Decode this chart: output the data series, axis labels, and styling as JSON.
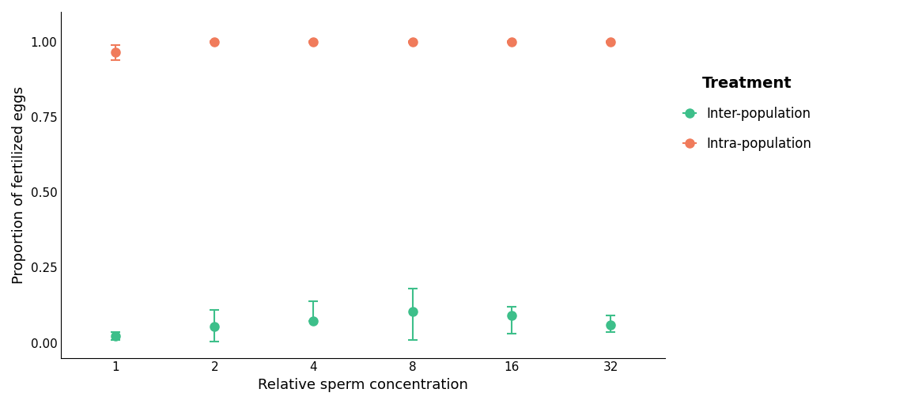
{
  "x_positions": [
    1,
    2,
    4,
    8,
    16,
    32
  ],
  "x_labels": [
    "1",
    "2",
    "4",
    "8",
    "16",
    "32"
  ],
  "inter_mean": [
    0.022,
    0.055,
    0.072,
    0.105,
    0.09,
    0.06
  ],
  "inter_err_low": [
    0.012,
    0.05,
    0.0,
    0.095,
    0.06,
    0.025
  ],
  "inter_err_high": [
    0.013,
    0.055,
    0.065,
    0.075,
    0.03,
    0.03
  ],
  "intra_mean": [
    0.965,
    1.0,
    1.0,
    1.0,
    1.0,
    1.0
  ],
  "intra_err_low": [
    0.025,
    0.003,
    0.003,
    0.003,
    0.003,
    0.003
  ],
  "intra_err_high": [
    0.025,
    0.003,
    0.003,
    0.003,
    0.003,
    0.003
  ],
  "inter_color": "#3dbf8a",
  "intra_color": "#f07b5b",
  "xlabel": "Relative sperm concentration",
  "ylabel": "Proportion of fertilized eggs",
  "legend_title": "Treatment",
  "legend_inter": "Inter-population",
  "legend_intra": "Intra-population",
  "ylim": [
    -0.05,
    1.1
  ],
  "yticks": [
    0.0,
    0.25,
    0.5,
    0.75,
    1.0
  ],
  "marker_size": 8,
  "capsize": 4,
  "linewidth": 1.5,
  "background_color": "#ffffff",
  "axis_label_fontsize": 13,
  "tick_fontsize": 11,
  "legend_title_fontsize": 14,
  "legend_fontsize": 12
}
